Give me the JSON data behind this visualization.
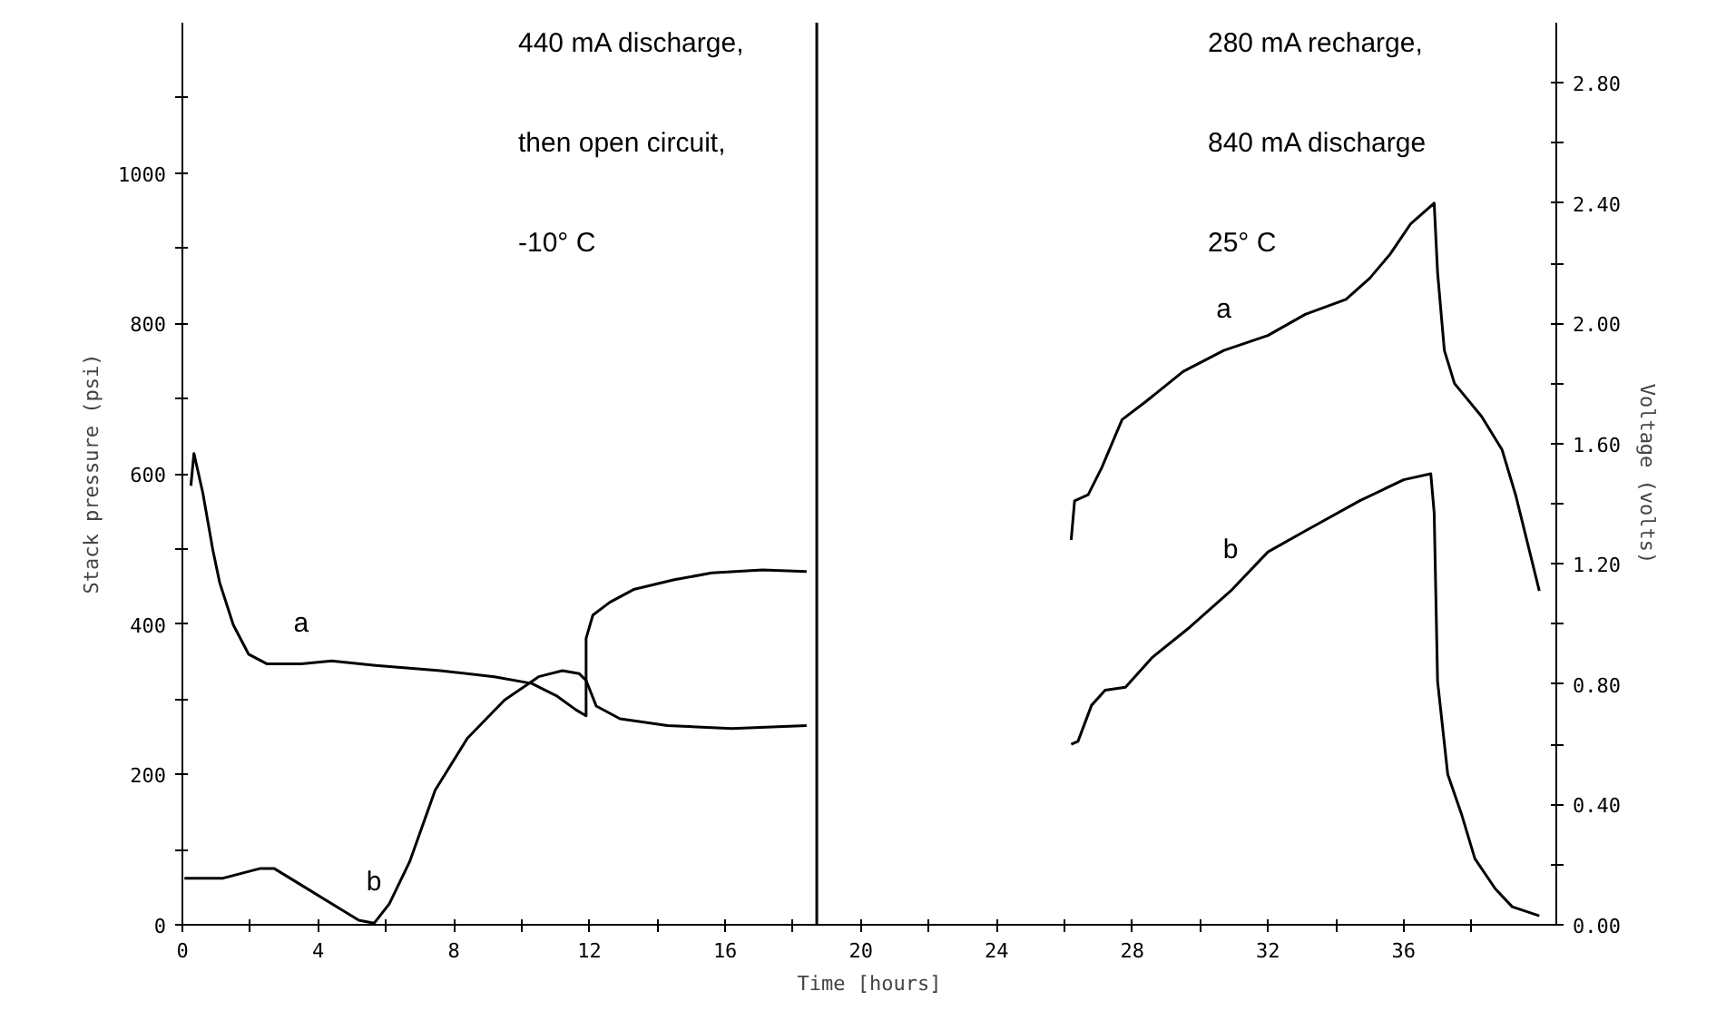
{
  "chart_data": {
    "type": "line",
    "xlabel": "Time [hours]",
    "ylabel": "Stack pressure (psi)",
    "y2label": "Voltage (volts)",
    "xlim": [
      0,
      40.5
    ],
    "ylim": [
      0,
      1200
    ],
    "y2lim": [
      0,
      3.0
    ],
    "xticks": [
      0,
      {
        "value": 2,
        "label": null
      },
      4,
      {
        "value": 6,
        "label": null
      },
      8,
      {
        "value": 10,
        "label": null
      },
      12,
      {
        "value": 14,
        "label": null
      },
      16,
      {
        "value": 18,
        "label": null
      },
      20,
      {
        "value": 22,
        "label": null
      },
      24,
      {
        "value": 26,
        "label": null
      },
      28,
      {
        "value": 30,
        "label": null
      },
      32,
      {
        "value": 34,
        "label": null
      },
      36,
      {
        "value": 38,
        "label": null
      }
    ],
    "yticks": [
      0,
      {
        "value": 100,
        "label": null
      },
      200,
      {
        "value": 300,
        "label": null
      },
      400,
      {
        "value": 500,
        "label": null
      },
      600,
      {
        "value": 700,
        "label": null
      },
      800,
      {
        "value": 900,
        "label": null
      },
      1000,
      {
        "value": 1100,
        "label": null
      }
    ],
    "y2ticks": [
      {
        "value": 0,
        "label": "0.00"
      },
      {
        "value": 0.2,
        "label": null
      },
      {
        "value": 0.4,
        "label": "0.40"
      },
      {
        "value": 0.6,
        "label": null
      },
      {
        "value": 0.8,
        "label": "0.80"
      },
      {
        "value": 1.0,
        "label": null
      },
      {
        "value": 1.2,
        "label": "1.20"
      },
      {
        "value": 1.4,
        "label": null
      },
      {
        "value": 1.6,
        "label": "1.60"
      },
      {
        "value": 1.8,
        "label": null
      },
      {
        "value": 2.0,
        "label": "2.00"
      },
      {
        "value": 2.2,
        "label": null
      },
      {
        "value": 2.4,
        "label": "2.40"
      },
      {
        "value": 2.6,
        "label": null
      },
      {
        "value": 2.8,
        "label": "2.80"
      }
    ],
    "grid": false,
    "line_style": "solid",
    "series": [
      {
        "name": "a",
        "color": "#000000",
        "x": [
          0.25,
          0.34,
          0.6,
          0.9,
          1.1,
          1.5,
          1.95,
          2.5,
          3.5,
          4.4,
          5.7,
          7.6,
          9.2,
          10.3,
          11.05,
          11.6,
          11.9,
          11.9,
          12.1,
          12.6,
          13.3,
          14.5,
          15.6,
          17.1,
          18.4
        ],
        "values": [
          584,
          627,
          575,
          498,
          455,
          399,
          360,
          347,
          347,
          351,
          345,
          338,
          330,
          321,
          304,
          286,
          278,
          381,
          412,
          429,
          446,
          459,
          468,
          472,
          470
        ]
      },
      {
        "name": "b",
        "color": "#000000",
        "x": [
          0.06,
          1.2,
          2.3,
          2.7,
          3.5,
          4.4,
          5.2,
          5.65,
          6.1,
          6.7,
          7.45,
          8.4,
          9.5,
          10.5,
          11.2,
          11.7,
          11.9,
          12.2,
          12.9,
          14.3,
          16.2,
          18.4
        ],
        "values": [
          62,
          62,
          75,
          75,
          53,
          28,
          6,
          2,
          28,
          84,
          179,
          248,
          299,
          330,
          338,
          334,
          325,
          291,
          274,
          265,
          261,
          265
        ]
      },
      {
        "name": "a",
        "color": "#000000",
        "axis": "y2",
        "x": [
          26.2,
          26.3,
          26.7,
          27.1,
          27.7,
          28.4,
          29.5,
          30.7,
          32.0,
          33.1,
          34.3,
          35.0,
          35.6,
          36.2,
          36.9,
          37.0,
          37.2,
          37.5,
          38.3,
          38.9,
          39.3,
          40.0
        ],
        "values": [
          1.28,
          1.41,
          1.43,
          1.52,
          1.68,
          1.74,
          1.84,
          1.91,
          1.96,
          2.03,
          2.08,
          2.15,
          2.23,
          2.33,
          2.4,
          2.17,
          1.91,
          1.8,
          1.69,
          1.58,
          1.43,
          1.11
        ]
      },
      {
        "name": "b",
        "color": "#000000",
        "axis": "y2",
        "x": [
          26.2,
          26.4,
          26.8,
          27.2,
          27.8,
          28.6,
          29.7,
          30.9,
          32.0,
          33.1,
          34.7,
          36.0,
          36.8,
          36.9,
          37.0,
          37.3,
          37.7,
          38.1,
          38.7,
          39.2,
          40.0
        ],
        "values": [
          0.6,
          0.61,
          0.73,
          0.78,
          0.79,
          0.89,
          0.99,
          1.11,
          1.24,
          1.31,
          1.41,
          1.48,
          1.5,
          1.37,
          0.81,
          0.5,
          0.37,
          0.22,
          0.12,
          0.06,
          0.03
        ]
      }
    ],
    "ref_lines": [
      {
        "axis": "x",
        "value": 18.7,
        "color": "#000000",
        "line_style": "solid"
      }
    ],
    "annotations": [
      "440 mA discharge,",
      "then open circuit,",
      "-10° C",
      "280 mA recharge,",
      "840 mA discharge",
      "25° C"
    ]
  }
}
